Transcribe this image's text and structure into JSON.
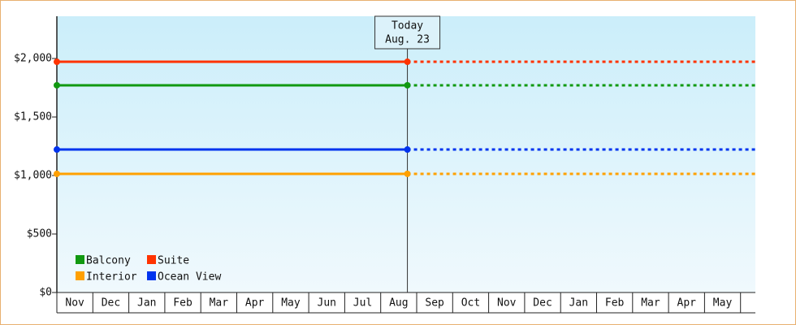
{
  "chart_data": {
    "type": "line",
    "categories": [
      "Nov",
      "Dec",
      "Jan",
      "Feb",
      "Mar",
      "Apr",
      "May",
      "Jun",
      "Jul",
      "Aug",
      "Sep",
      "Oct",
      "Nov",
      "Dec",
      "Jan",
      "Feb",
      "Mar",
      "Apr",
      "May"
    ],
    "series": [
      {
        "name": "Balcony",
        "color": "#119911",
        "value": 1771
      },
      {
        "name": "Suite",
        "color": "#ff3300",
        "value": 1972
      },
      {
        "name": "Interior",
        "color": "#ffa000",
        "value": 1014
      },
      {
        "name": "Ocean View",
        "color": "#0033ee",
        "value": 1222
      }
    ],
    "annotation": {
      "title": "Today",
      "date": "Aug. 23"
    },
    "ylim": [
      0,
      2361
    ],
    "yticks": [
      {
        "value": 0,
        "label": "$0"
      },
      {
        "value": 500,
        "label": "$500"
      },
      {
        "value": 1000,
        "label": "$1,000"
      },
      {
        "value": 1500,
        "label": "$1,500"
      },
      {
        "value": 2000,
        "label": "$2,000"
      }
    ]
  }
}
